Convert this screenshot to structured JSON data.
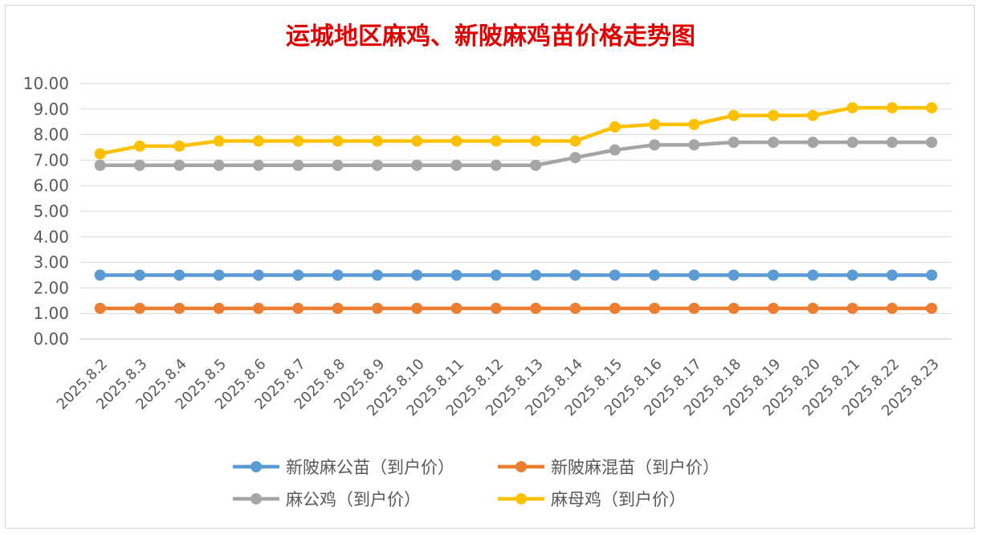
{
  "chart_data": {
    "type": "line",
    "title": "运城地区麻鸡、新陂麻鸡苗价格走势图",
    "xlabel": "",
    "ylabel": "",
    "ylim": [
      0,
      10
    ],
    "ytick_labels": [
      "0.00",
      "1.00",
      "2.00",
      "3.00",
      "4.00",
      "5.00",
      "6.00",
      "7.00",
      "8.00",
      "9.00",
      "10.00"
    ],
    "grid": true,
    "legend_position": "bottom",
    "categories": [
      "2025.8.2",
      "2025.8.3",
      "2025.8.4",
      "2025.8.5",
      "2025.8.6",
      "2025.8.7",
      "2025.8.8",
      "2025.8.9",
      "2025.8.10",
      "2025.8.11",
      "2025.8.12",
      "2025.8.13",
      "2025.8.14",
      "2025.8.15",
      "2025.8.16",
      "2025.8.17",
      "2025.8.18",
      "2025.8.19",
      "2025.8.20",
      "2025.8.21",
      "2025.8.22",
      "2025.8.23"
    ],
    "series": [
      {
        "name": "新陂麻公苗（到户价）",
        "color": "#5b9bd5",
        "values": [
          2.5,
          2.5,
          2.5,
          2.5,
          2.5,
          2.5,
          2.5,
          2.5,
          2.5,
          2.5,
          2.5,
          2.5,
          2.5,
          2.5,
          2.5,
          2.5,
          2.5,
          2.5,
          2.5,
          2.5,
          2.5,
          2.5
        ]
      },
      {
        "name": "新陂麻混苗（到户价）",
        "color": "#ed7d31",
        "values": [
          1.2,
          1.2,
          1.2,
          1.2,
          1.2,
          1.2,
          1.2,
          1.2,
          1.2,
          1.2,
          1.2,
          1.2,
          1.2,
          1.2,
          1.2,
          1.2,
          1.2,
          1.2,
          1.2,
          1.2,
          1.2,
          1.2
        ]
      },
      {
        "name": "麻公鸡（到户价）",
        "color": "#a5a5a5",
        "values": [
          6.8,
          6.8,
          6.8,
          6.8,
          6.8,
          6.8,
          6.8,
          6.8,
          6.8,
          6.8,
          6.8,
          6.8,
          7.1,
          7.4,
          7.6,
          7.6,
          7.7,
          7.7,
          7.7,
          7.7,
          7.7,
          7.7
        ]
      },
      {
        "name": "麻母鸡（到户价）",
        "color": "#ffc000",
        "values": [
          7.25,
          7.55,
          7.55,
          7.75,
          7.75,
          7.75,
          7.75,
          7.75,
          7.75,
          7.75,
          7.75,
          7.75,
          7.75,
          8.3,
          8.4,
          8.4,
          8.75,
          8.75,
          8.75,
          9.05,
          9.05,
          9.05
        ]
      }
    ]
  }
}
